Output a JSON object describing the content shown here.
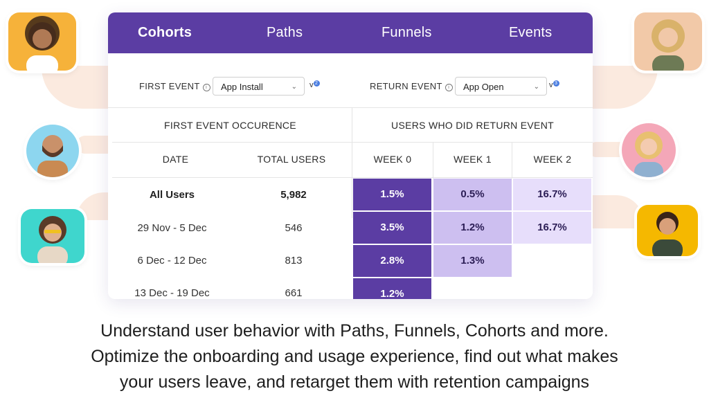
{
  "tabs": [
    {
      "label": "Cohorts",
      "active": true
    },
    {
      "label": "Paths"
    },
    {
      "label": "Funnels"
    },
    {
      "label": "Events"
    }
  ],
  "filters": {
    "first_event_label": "FIRST EVENT",
    "first_event_value": "App Install",
    "first_event_version": "v",
    "first_event_badge": "2",
    "return_event_label": "RETURN EVENT",
    "return_event_value": "App Open",
    "return_event_version": "v",
    "return_event_badge": "3",
    "info_icon": "i"
  },
  "table": {
    "group_headers": [
      "FIRST EVENT OCCURENCE",
      "USERS WHO DID RETURN EVENT"
    ],
    "columns": [
      "DATE",
      "TOTAL USERS",
      "WEEK 0",
      "WEEK 1",
      "WEEK 2"
    ],
    "rows": [
      {
        "date": "All Users",
        "total": "5,982",
        "weeks": [
          "1.5%",
          "0.5%",
          "16.7%"
        ]
      },
      {
        "date": "29 Nov - 5 Dec",
        "total": "546",
        "weeks": [
          "3.5%",
          "1.2%",
          "16.7%"
        ]
      },
      {
        "date": "6 Dec - 12 Dec",
        "total": "813",
        "weeks": [
          "2.8%",
          "1.3%"
        ]
      },
      {
        "date": "13 Dec - 19 Dec",
        "total": "661",
        "weeks": [
          "1.2%"
        ]
      }
    ]
  },
  "caption": {
    "line1": "Understand user behavior with Paths, Funnels, Cohorts and more.",
    "line2": "Optimize the onboarding and usage experience, find out what makes",
    "line3": "your users leave, and retarget them with retention campaigns"
  },
  "colors": {
    "accent": "#5b3da3",
    "cell_mid": "#cdbff0",
    "cell_light": "#e7defb"
  }
}
